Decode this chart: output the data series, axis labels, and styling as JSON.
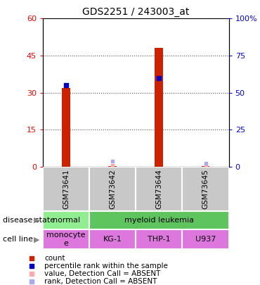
{
  "title": "GDS2251 / 243003_at",
  "samples": [
    "GSM73641",
    "GSM73642",
    "GSM73644",
    "GSM73645"
  ],
  "count_values": [
    32,
    0.4,
    48,
    0.4
  ],
  "rank_values_pct": [
    55,
    null,
    60,
    null
  ],
  "absent_value_values": [
    null,
    0.5,
    null,
    0.5
  ],
  "absent_rank_values_pct": [
    null,
    4.0,
    null,
    2.5
  ],
  "ylim_left": [
    0,
    60
  ],
  "ylim_right": [
    0,
    100
  ],
  "yticks_left": [
    0,
    15,
    30,
    45,
    60
  ],
  "yticks_right": [
    0,
    25,
    50,
    75,
    100
  ],
  "ytick_labels_left": [
    "0",
    "15",
    "30",
    "45",
    "60"
  ],
  "ytick_labels_right": [
    "0",
    "25",
    "50",
    "75",
    "100%"
  ],
  "disease_data": [
    [
      "normal",
      1,
      "#90ee90"
    ],
    [
      "myeloid leukemia",
      3,
      "#5ec45e"
    ]
  ],
  "cell_line": [
    "monocyte\ne",
    "KG-1",
    "THP-1",
    "U937"
  ],
  "cell_line_color": "#dd77dd",
  "sample_box_color": "#c8c8c8",
  "bar_color": "#cc2200",
  "rank_color": "#0000cc",
  "absent_value_color": "#ffaaaa",
  "absent_rank_color": "#aaaaee",
  "legend_items": [
    "count",
    "percentile rank within the sample",
    "value, Detection Call = ABSENT",
    "rank, Detection Call = ABSENT"
  ],
  "legend_colors": [
    "#cc2200",
    "#0000cc",
    "#ffaaaa",
    "#aaaaee"
  ],
  "bar_width": 0.18
}
